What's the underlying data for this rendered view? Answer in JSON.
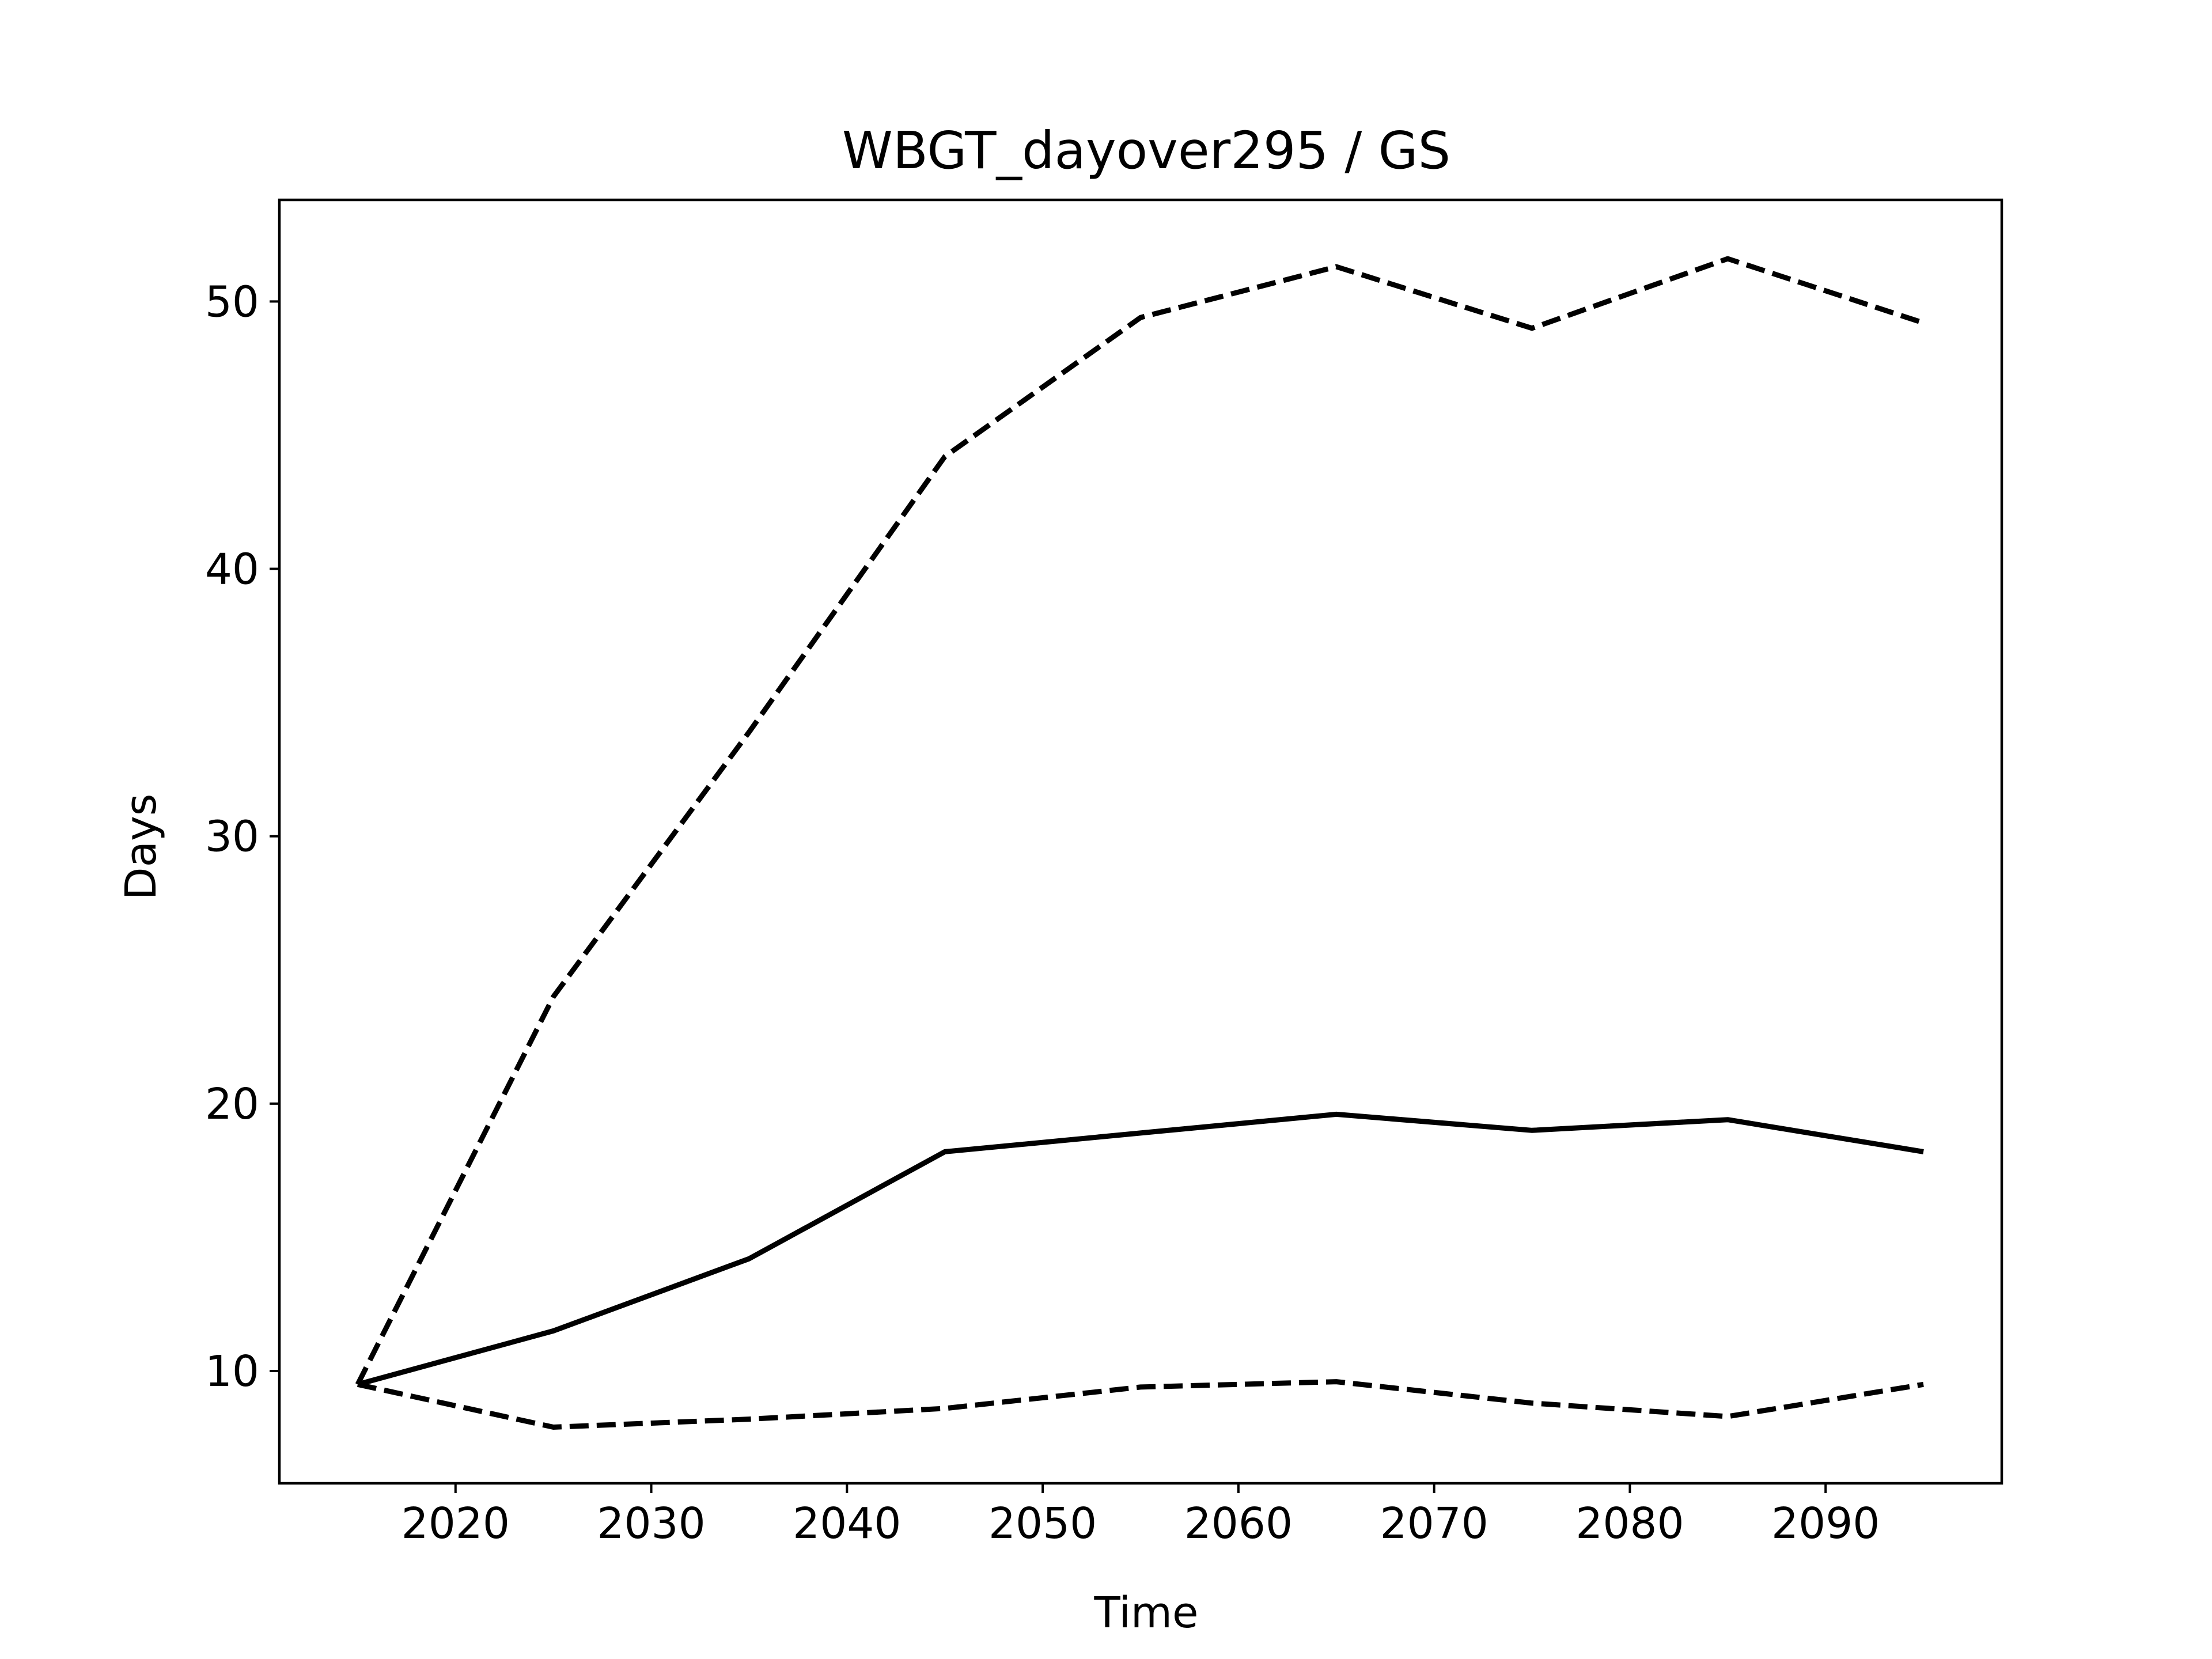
{
  "chart_data": {
    "type": "line",
    "title": "WBGT_dayover295 / GS",
    "xlabel": "Time",
    "ylabel": "Days",
    "xlim": [
      2011,
      2099
    ],
    "ylim": [
      5.8,
      53.8
    ],
    "xticks": [
      2020,
      2030,
      2040,
      2050,
      2060,
      2070,
      2080,
      2090
    ],
    "yticks": [
      10,
      20,
      30,
      40,
      50
    ],
    "grid": false,
    "legend": "none",
    "x": [
      2015,
      2025,
      2035,
      2045,
      2055,
      2065,
      2075,
      2085,
      2095
    ],
    "series": [
      {
        "style": "dashed",
        "color": "#000000",
        "values": [
          9.5,
          24.0,
          33.9,
          44.2,
          49.4,
          51.3,
          49.0,
          51.6,
          49.2
        ]
      },
      {
        "style": "solid",
        "color": "#000000",
        "values": [
          9.5,
          11.5,
          14.2,
          18.2,
          18.9,
          19.6,
          19.0,
          19.4,
          18.2
        ]
      },
      {
        "style": "dashed",
        "color": "#000000",
        "values": [
          9.5,
          7.9,
          8.2,
          8.6,
          9.4,
          9.6,
          8.8,
          8.3,
          9.5
        ]
      }
    ]
  }
}
